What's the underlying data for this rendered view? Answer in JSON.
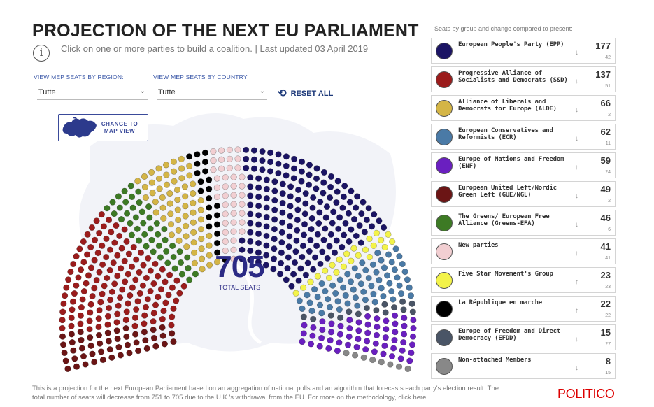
{
  "title": "PROJECTION OF THE NEXT EU PARLIAMENT",
  "subtitle": "Click on one or more parties to build a coalition. | Last updated 03 April 2019",
  "info_icon": "i",
  "filters": {
    "region_label": "VIEW MEP SEATS BY REGION:",
    "region_value": "Tutte",
    "country_label": "VIEW MEP SEATS BY COUNTRY:",
    "country_value": "Tutte",
    "reset_label": "RESET ALL"
  },
  "map_button": {
    "line1": "CHANGE TO",
    "line2": "MAP VIEW",
    "icon": "europe-map-icon"
  },
  "total": {
    "value": "705",
    "label": "TOTAL SEATS"
  },
  "legend_title": "Seats by group and change compared to present:",
  "parties": [
    {
      "name": "European People's Party (EPP)",
      "seats": "177",
      "change": "42",
      "direction": "down",
      "color": "#1b1464",
      "seat_count": 177
    },
    {
      "name": "Progressive Alliance of Socialists and Democrats (S&D)",
      "seats": "137",
      "change": "51",
      "direction": "down",
      "color": "#9b1c1c",
      "seat_count": 137
    },
    {
      "name": "Alliance of Liberals and Democrats for Europe (ALDE)",
      "seats": "66",
      "change": "2",
      "direction": "down",
      "color": "#d4b546",
      "seat_count": 66
    },
    {
      "name": "European Conservatives and Reformists (ECR)",
      "seats": "62",
      "change": "11",
      "direction": "down",
      "color": "#4a7aa6",
      "seat_count": 62
    },
    {
      "name": "Europe of Nations and Freedom (ENF)",
      "seats": "59",
      "change": "24",
      "direction": "up",
      "color": "#6a1fc0",
      "seat_count": 59
    },
    {
      "name": "European United Left/Nordic Green Left (GUE/NGL)",
      "seats": "49",
      "change": "2",
      "direction": "down",
      "color": "#6b1515",
      "seat_count": 49
    },
    {
      "name": "The Greens/ European Free Alliance (Greens-EFA)",
      "seats": "46",
      "change": "6",
      "direction": "down",
      "color": "#3d7a24",
      "seat_count": 46
    },
    {
      "name": "New parties",
      "seats": "41",
      "change": "41",
      "direction": "up",
      "color": "#f2cfd2",
      "seat_count": 41
    },
    {
      "name": "Five Star Movement's Group",
      "seats": "23",
      "change": "23",
      "direction": "up",
      "color": "#f3f34a",
      "seat_count": 23
    },
    {
      "name": "La République en marche",
      "seats": "22",
      "change": "22",
      "direction": "up",
      "color": "#000000",
      "seat_count": 22
    },
    {
      "name": "Europe of Freedom and Direct Democracy (EFDD)",
      "seats": "15",
      "change": "27",
      "direction": "down",
      "color": "#4a5566",
      "seat_count": 15
    },
    {
      "name": "Non-attached Members",
      "seats": "8",
      "change": "15",
      "direction": "down",
      "color": "#888888",
      "seat_count": 8
    }
  ],
  "arrows": {
    "up": "↑",
    "down": "↓"
  },
  "footnote": "This is a projection for the next European Parliament based on an aggregation of national polls and an algorithm that forecasts each party's election result. The total number of seats will decrease from 751 to 705 due to the U.K.'s withdrawal from the EU. For more on the methodology, click here.",
  "brand": "POLITICO"
}
